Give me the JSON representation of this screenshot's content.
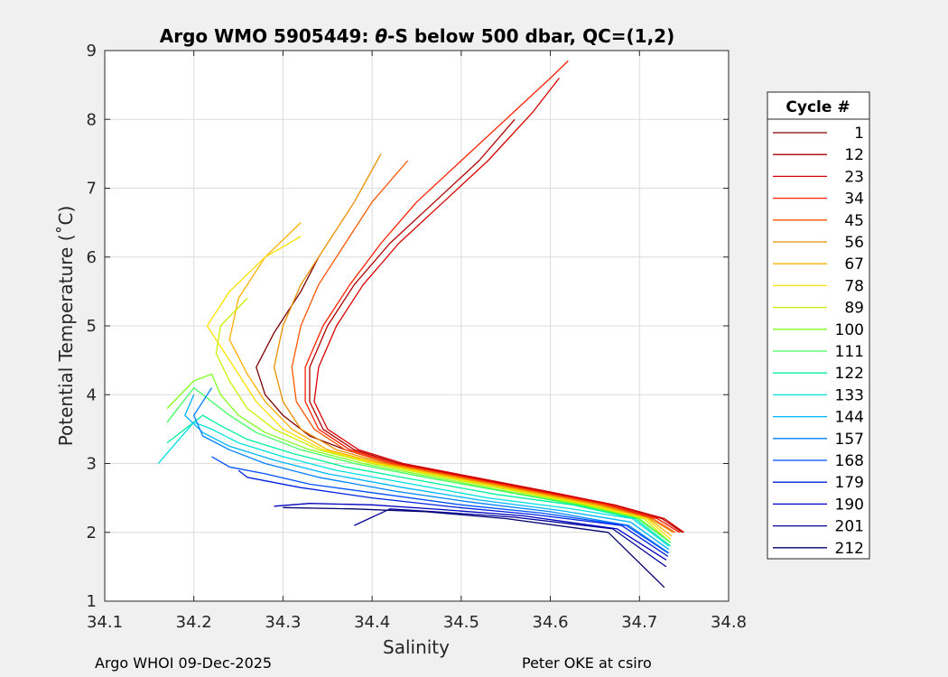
{
  "chart_data": {
    "type": "line",
    "title_prefix": "Argo WMO 5905449: ",
    "title_theta": "θ",
    "title_suffix": "-S below 500 dbar,  QC=(1,2)",
    "xlabel": "Salinity",
    "ylabel": "Potential Temperature (˚C)",
    "xlim": [
      34.1,
      34.8
    ],
    "ylim": [
      1,
      9
    ],
    "xticks": [
      "34.1",
      "34.2",
      "34.3",
      "34.4",
      "34.5",
      "34.6",
      "34.7",
      "34.8"
    ],
    "yticks": [
      "1",
      "2",
      "3",
      "4",
      "5",
      "6",
      "7",
      "8",
      "9"
    ],
    "grid": true,
    "legend": {
      "title": "Cycle #",
      "placement": "right",
      "entries": [
        "1",
        "12",
        "23",
        "34",
        "45",
        "56",
        "67",
        "78",
        "89",
        "100",
        "111",
        "122",
        "133",
        "144",
        "157",
        "168",
        "179",
        "190",
        "201",
        "212"
      ]
    },
    "colors": [
      "#7f0000",
      "#b00000",
      "#d80000",
      "#ff2000",
      "#ff5500",
      "#e89000",
      "#ffb000",
      "#ffe000",
      "#c8f000",
      "#80ff20",
      "#40ff60",
      "#00f0a0",
      "#00e0e0",
      "#00b4ff",
      "#0080ff",
      "#0050ff",
      "#0020e0",
      "#0000c0",
      "#00009a",
      "#000070"
    ],
    "series": [
      {
        "name": "1",
        "salinity": [
          34.745,
          34.72,
          34.66,
          34.58,
          34.5,
          34.42,
          34.37,
          34.33,
          34.3,
          34.28,
          34.27,
          34.29,
          34.32,
          34.34
        ],
        "theta": [
          2.0,
          2.2,
          2.4,
          2.6,
          2.8,
          3.0,
          3.2,
          3.4,
          3.7,
          4.0,
          4.4,
          4.9,
          5.5,
          6.0
        ]
      },
      {
        "name": "12",
        "salinity": [
          34.748,
          34.725,
          34.67,
          34.59,
          34.51,
          34.43,
          34.38,
          34.345,
          34.33,
          34.33,
          34.35,
          34.38,
          34.42,
          34.47,
          34.52,
          34.56
        ],
        "theta": [
          2.0,
          2.2,
          2.4,
          2.6,
          2.8,
          3.0,
          3.2,
          3.5,
          3.9,
          4.4,
          5.0,
          5.6,
          6.2,
          6.8,
          7.4,
          8.0
        ]
      },
      {
        "name": "23",
        "salinity": [
          34.75,
          34.728,
          34.672,
          34.595,
          34.515,
          34.435,
          34.385,
          34.35,
          34.335,
          34.34,
          34.36,
          34.39,
          34.43,
          34.48,
          34.53,
          34.58,
          34.61
        ],
        "theta": [
          2.0,
          2.2,
          2.4,
          2.6,
          2.8,
          3.0,
          3.2,
          3.5,
          3.9,
          4.4,
          5.0,
          5.6,
          6.2,
          6.8,
          7.4,
          8.1,
          8.6
        ]
      },
      {
        "name": "34",
        "salinity": [
          34.745,
          34.72,
          34.665,
          34.585,
          34.505,
          34.425,
          34.375,
          34.34,
          34.325,
          34.325,
          34.345,
          34.375,
          34.41,
          34.45,
          34.5,
          34.55,
          34.6,
          34.62
        ],
        "theta": [
          2.0,
          2.2,
          2.4,
          2.6,
          2.8,
          3.0,
          3.2,
          3.5,
          3.9,
          4.4,
          5.0,
          5.6,
          6.2,
          6.8,
          7.4,
          8.0,
          8.6,
          8.85
        ]
      },
      {
        "name": "45",
        "salinity": [
          34.74,
          34.715,
          34.66,
          34.58,
          34.5,
          34.42,
          34.37,
          34.335,
          34.315,
          34.31,
          34.32,
          34.34,
          34.37,
          34.4,
          34.44
        ],
        "theta": [
          2.0,
          2.2,
          2.4,
          2.6,
          2.8,
          3.0,
          3.2,
          3.5,
          3.9,
          4.4,
          5.0,
          5.6,
          6.2,
          6.8,
          7.4
        ]
      },
      {
        "name": "56",
        "salinity": [
          34.738,
          34.712,
          34.655,
          34.575,
          34.495,
          34.415,
          34.36,
          34.32,
          34.3,
          34.29,
          34.3,
          34.32,
          34.35,
          34.38,
          34.41
        ],
        "theta": [
          2.0,
          2.2,
          2.4,
          2.6,
          2.8,
          3.0,
          3.2,
          3.5,
          3.9,
          4.4,
          5.0,
          5.6,
          6.2,
          6.8,
          7.5
        ]
      },
      {
        "name": "67",
        "salinity": [
          34.736,
          34.71,
          34.65,
          34.57,
          34.49,
          34.41,
          34.35,
          34.31,
          34.28,
          34.26,
          34.24,
          34.25,
          34.28,
          34.32
        ],
        "theta": [
          1.95,
          2.2,
          2.4,
          2.6,
          2.8,
          3.0,
          3.2,
          3.5,
          3.9,
          4.3,
          4.8,
          5.4,
          6.0,
          6.5
        ]
      },
      {
        "name": "78",
        "salinity": [
          34.735,
          34.708,
          34.645,
          34.565,
          34.485,
          34.405,
          34.345,
          34.3,
          34.27,
          34.25,
          34.23,
          34.215,
          34.24,
          34.28,
          34.32
        ],
        "theta": [
          1.9,
          2.2,
          2.4,
          2.6,
          2.8,
          3.0,
          3.2,
          3.5,
          3.9,
          4.3,
          4.7,
          5.0,
          5.5,
          6.0,
          6.3
        ]
      },
      {
        "name": "89",
        "salinity": [
          34.735,
          34.705,
          34.64,
          34.56,
          34.48,
          34.4,
          34.34,
          34.29,
          34.26,
          34.24,
          34.225,
          34.23,
          34.26
        ],
        "theta": [
          1.85,
          2.2,
          2.4,
          2.6,
          2.8,
          3.0,
          3.2,
          3.5,
          3.8,
          4.2,
          4.6,
          5.0,
          5.4
        ]
      },
      {
        "name": "100",
        "salinity": [
          34.735,
          34.7,
          34.635,
          34.55,
          34.47,
          34.39,
          34.33,
          34.28,
          34.25,
          34.23,
          34.22,
          34.2,
          34.17
        ],
        "theta": [
          1.85,
          2.2,
          2.4,
          2.6,
          2.8,
          3.0,
          3.2,
          3.45,
          3.7,
          4.0,
          4.3,
          4.2,
          3.8
        ]
      },
      {
        "name": "111",
        "salinity": [
          34.735,
          34.698,
          34.63,
          34.545,
          34.46,
          34.38,
          34.32,
          34.27,
          34.24,
          34.22,
          34.2,
          34.17
        ],
        "theta": [
          1.85,
          2.2,
          2.4,
          2.6,
          2.8,
          3.0,
          3.2,
          3.45,
          3.7,
          3.9,
          4.1,
          3.6
        ]
      },
      {
        "name": "122",
        "salinity": [
          34.735,
          34.695,
          34.625,
          34.54,
          34.455,
          34.37,
          34.31,
          34.26,
          34.23,
          34.21,
          34.19,
          34.17
        ],
        "theta": [
          1.8,
          2.2,
          2.4,
          2.55,
          2.75,
          2.95,
          3.15,
          3.35,
          3.55,
          3.7,
          3.5,
          3.3
        ]
      },
      {
        "name": "133",
        "salinity": [
          34.733,
          34.692,
          34.62,
          34.53,
          34.445,
          34.36,
          34.3,
          34.25,
          34.22,
          34.2,
          34.18,
          34.16
        ],
        "theta": [
          1.8,
          2.2,
          2.35,
          2.5,
          2.7,
          2.9,
          3.1,
          3.3,
          3.5,
          3.6,
          3.3,
          3.0
        ]
      },
      {
        "name": "144",
        "salinity": [
          34.733,
          34.69,
          34.61,
          34.52,
          34.435,
          34.35,
          34.29,
          34.24,
          34.21,
          34.19,
          34.2
        ],
        "theta": [
          1.75,
          2.15,
          2.32,
          2.47,
          2.65,
          2.85,
          3.05,
          3.25,
          3.45,
          3.7,
          4.0
        ]
      },
      {
        "name": "157",
        "salinity": [
          34.733,
          34.688,
          34.6,
          34.51,
          34.425,
          34.34,
          34.28,
          34.24,
          34.21,
          34.2,
          34.22
        ],
        "theta": [
          1.7,
          2.1,
          2.3,
          2.44,
          2.6,
          2.8,
          3.0,
          3.2,
          3.4,
          3.7,
          4.1
        ]
      },
      {
        "name": "168",
        "salinity": [
          34.732,
          34.685,
          34.59,
          34.5,
          34.415,
          34.33,
          34.28,
          34.24,
          34.22
        ],
        "theta": [
          1.7,
          2.1,
          2.28,
          2.4,
          2.55,
          2.7,
          2.85,
          2.95,
          3.1
        ]
      },
      {
        "name": "179",
        "salinity": [
          34.732,
          34.68,
          34.58,
          34.49,
          34.4,
          34.32,
          34.26,
          34.25
        ],
        "theta": [
          1.65,
          2.1,
          2.26,
          2.37,
          2.5,
          2.65,
          2.8,
          2.9
        ]
      },
      {
        "name": "190",
        "salinity": [
          34.73,
          34.675,
          34.57,
          34.48,
          34.4,
          34.33,
          34.29
        ],
        "theta": [
          1.6,
          2.05,
          2.24,
          2.33,
          2.4,
          2.42,
          2.38
        ]
      },
      {
        "name": "201",
        "salinity": [
          34.73,
          34.67,
          34.56,
          34.47,
          34.42,
          34.38
        ],
        "theta": [
          1.5,
          2.05,
          2.22,
          2.3,
          2.34,
          2.1
        ]
      },
      {
        "name": "212",
        "salinity": [
          34.728,
          34.665,
          34.55,
          34.46,
          34.38,
          34.3
        ],
        "theta": [
          1.2,
          2.0,
          2.2,
          2.3,
          2.34,
          2.36
        ]
      }
    ]
  },
  "footer": {
    "left": "Argo WHOI 09-Dec-2025",
    "right": "Peter OKE at csiro"
  }
}
